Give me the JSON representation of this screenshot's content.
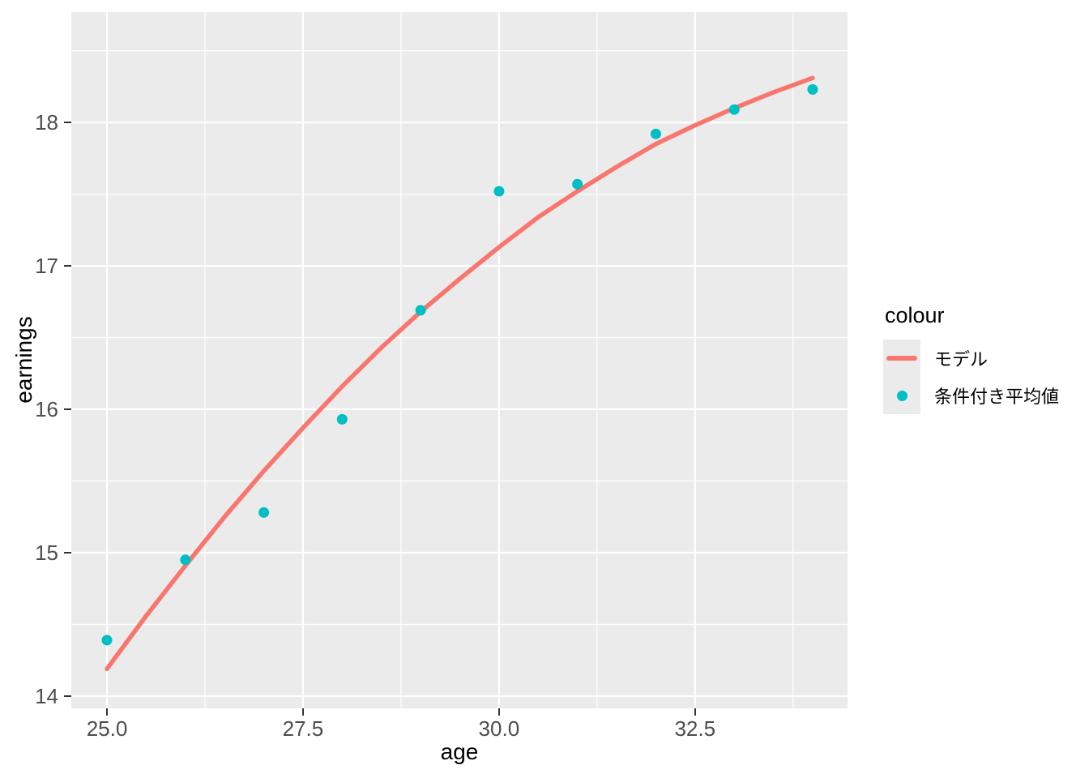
{
  "axes": {
    "x_title": "age",
    "y_title": "earnings"
  },
  "legend": {
    "title": "colour",
    "items": [
      {
        "label": "モデル",
        "type": "line",
        "color": "#F8766D"
      },
      {
        "label": "条件付き平均値",
        "type": "point",
        "color": "#00BFC4"
      }
    ]
  },
  "chart_data": {
    "type": "scatter",
    "title": "",
    "xlabel": "age",
    "ylabel": "earnings",
    "xlim": [
      24.545,
      34.445
    ],
    "ylim": [
      13.915,
      18.769
    ],
    "x_major_ticks": [
      25.0,
      27.5,
      30.0,
      32.5
    ],
    "x_tick_labels": [
      "25.0",
      "27.5",
      "30.0",
      "32.5"
    ],
    "x_minor_ticks": [
      26.25,
      28.75,
      31.25,
      33.75
    ],
    "y_major_ticks": [
      14,
      15,
      16,
      17,
      18
    ],
    "y_tick_labels": [
      "14",
      "15",
      "16",
      "17",
      "18"
    ],
    "y_minor_ticks": [
      14.5,
      15.5,
      16.5,
      17.5,
      18.5
    ],
    "grid": true,
    "legend_position": "right",
    "panel_bg": "#EBEBEB",
    "grid_color": "#FFFFFF",
    "series": [
      {
        "name": "モデル",
        "type": "line",
        "color": "#F8766D",
        "points": [
          [
            25.0,
            14.19
          ],
          [
            25.5,
            14.56
          ],
          [
            26.0,
            14.91
          ],
          [
            26.5,
            15.25
          ],
          [
            27.0,
            15.57
          ],
          [
            27.5,
            15.87
          ],
          [
            28.0,
            16.16
          ],
          [
            28.5,
            16.43
          ],
          [
            29.0,
            16.68
          ],
          [
            29.5,
            16.91
          ],
          [
            30.0,
            17.13
          ],
          [
            30.5,
            17.34
          ],
          [
            31.0,
            17.52
          ],
          [
            31.5,
            17.69
          ],
          [
            32.0,
            17.85
          ],
          [
            32.5,
            17.98
          ],
          [
            33.0,
            18.1
          ],
          [
            33.5,
            18.21
          ],
          [
            34.0,
            18.31
          ]
        ]
      },
      {
        "name": "条件付き平均値",
        "type": "scatter",
        "color": "#00BFC4",
        "points": [
          [
            25,
            14.39
          ],
          [
            26,
            14.95
          ],
          [
            27,
            15.28
          ],
          [
            28,
            15.93
          ],
          [
            29,
            16.69
          ],
          [
            30,
            17.52
          ],
          [
            31,
            17.57
          ],
          [
            32,
            17.92
          ],
          [
            33,
            18.09
          ],
          [
            34,
            18.23
          ]
        ]
      }
    ]
  }
}
